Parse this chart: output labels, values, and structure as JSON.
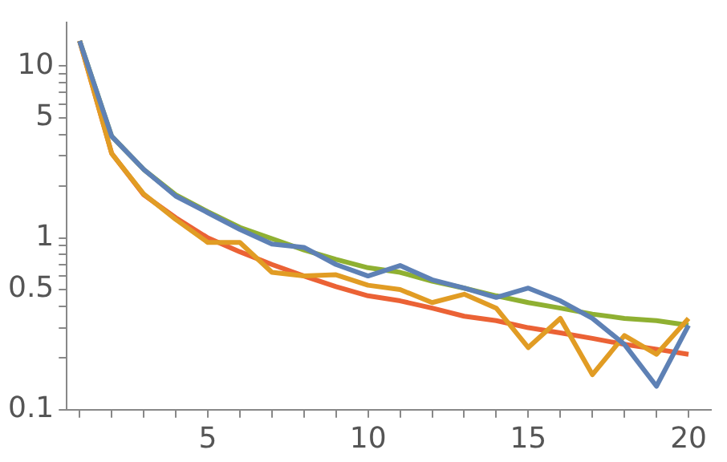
{
  "chart_data": {
    "type": "line",
    "x": [
      1,
      2,
      3,
      4,
      5,
      6,
      7,
      8,
      9,
      10,
      11,
      12,
      13,
      14,
      15,
      16,
      17,
      18,
      19,
      20
    ],
    "series": [
      {
        "color": "#5e81b5",
        "values": [
          14,
          3.9,
          2.5,
          1.75,
          1.4,
          1.12,
          0.92,
          0.88,
          0.7,
          0.6,
          0.69,
          0.57,
          0.51,
          0.45,
          0.51,
          0.43,
          0.34,
          0.24,
          0.137,
          0.31
        ]
      },
      {
        "color": "#e19c24",
        "values": [
          14,
          3.1,
          1.8,
          1.28,
          0.94,
          0.94,
          0.63,
          0.6,
          0.61,
          0.53,
          0.5,
          0.42,
          0.47,
          0.39,
          0.23,
          0.34,
          0.16,
          0.27,
          0.21,
          0.34
        ]
      },
      {
        "color": "#8fb032",
        "values": [
          14,
          3.9,
          2.5,
          1.78,
          1.42,
          1.15,
          0.99,
          0.85,
          0.75,
          0.67,
          0.63,
          0.56,
          0.51,
          0.46,
          0.42,
          0.39,
          0.36,
          0.34,
          0.33,
          0.31
        ]
      },
      {
        "color": "#eb6235",
        "values": [
          14,
          3.1,
          1.78,
          1.31,
          1.0,
          0.83,
          0.7,
          0.6,
          0.52,
          0.46,
          0.43,
          0.39,
          0.35,
          0.33,
          0.3,
          0.28,
          0.26,
          0.24,
          0.225,
          0.21
        ]
      }
    ],
    "log": "y",
    "xlim": [
      0.6,
      20.7
    ],
    "ylim": [
      0.1,
      18
    ],
    "xticks": [
      {
        "value": 1,
        "label": null
      },
      {
        "value": 2,
        "label": null
      },
      {
        "value": 3,
        "label": null
      },
      {
        "value": 4,
        "label": null
      },
      5,
      {
        "value": 6,
        "label": null
      },
      {
        "value": 7,
        "label": null
      },
      {
        "value": 8,
        "label": null
      },
      {
        "value": 9,
        "label": null
      },
      10,
      {
        "value": 11,
        "label": null
      },
      {
        "value": 12,
        "label": null
      },
      {
        "value": 13,
        "label": null
      },
      {
        "value": 14,
        "label": null
      },
      15,
      {
        "value": 16,
        "label": null
      },
      {
        "value": 17,
        "label": null
      },
      {
        "value": 18,
        "label": null
      },
      {
        "value": 19,
        "label": null
      },
      20
    ],
    "yticks": [
      0.1,
      {
        "value": 0.2,
        "label": null
      },
      {
        "value": 0.3,
        "label": null
      },
      {
        "value": 0.4,
        "label": null
      },
      0.5,
      {
        "value": 0.6,
        "label": null
      },
      {
        "value": 0.7,
        "label": null
      },
      {
        "value": 0.8,
        "label": null
      },
      {
        "value": 0.9,
        "label": null
      },
      1,
      {
        "value": 2,
        "label": null
      },
      {
        "value": 3,
        "label": null
      },
      {
        "value": 4,
        "label": null
      },
      5,
      {
        "value": 6,
        "label": null
      },
      {
        "value": 7,
        "label": null
      },
      {
        "value": 8,
        "label": null
      },
      {
        "value": 9,
        "label": null
      },
      10
    ],
    "grid": false,
    "legend": false,
    "marker": "none",
    "line_style": "solid"
  }
}
